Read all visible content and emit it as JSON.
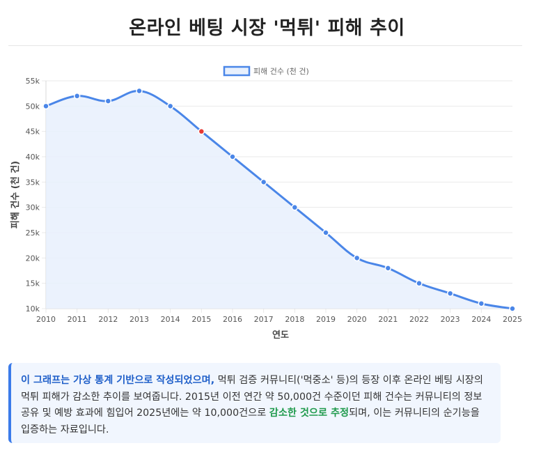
{
  "page": {
    "title": "온라인 베팅 시장 '먹튀' 피해 추이"
  },
  "chart_data": {
    "type": "area",
    "title": "온라인 베팅 시장 '먹튀' 피해 추이",
    "xlabel": "연도",
    "ylabel": "피해 건수 (천 건)",
    "legend": {
      "label": "피해 건수 (천 건)",
      "position": "top-center"
    },
    "categories": [
      "2010",
      "2011",
      "2012",
      "2013",
      "2014",
      "2015",
      "2016",
      "2017",
      "2018",
      "2019",
      "2020",
      "2021",
      "2022",
      "2023",
      "2024",
      "2025"
    ],
    "series": [
      {
        "name": "피해 건수 (천 건)",
        "values": [
          50000,
          52000,
          51000,
          53000,
          50000,
          45000,
          40000,
          35000,
          30000,
          25000,
          20000,
          18000,
          15000,
          13000,
          11000,
          10000
        ]
      }
    ],
    "highlight_index": 5,
    "ylim": [
      10000,
      55000
    ],
    "yticks": [
      10000,
      15000,
      20000,
      25000,
      30000,
      35000,
      40000,
      45000,
      50000,
      55000
    ],
    "ytick_labels": [
      "10k",
      "15k",
      "20k",
      "25k",
      "30k",
      "35k",
      "40k",
      "45k",
      "50k",
      "55k"
    ],
    "colors": {
      "line": "#4a86e8",
      "fill": "#e8f0fd",
      "point": "#4a86e8",
      "highlight": "#e53935",
      "grid": "#e9e9e9",
      "tick": "#555555"
    }
  },
  "note": {
    "lead": "이 그래프는 가상 통계 기반으로 작성되었으며,",
    "body1": " 먹튀 검증 커뮤니티('먹중소' 등)의 등장 이후 온라인 베팅 시장의 먹튀 피해가 감소한 추이를 보여줍니다. 2015년 이전 연간 약 50,000건 수준이던 피해 건수는 커뮤니티의 정보 공유 및 예방 효과에 힘입어 2025년에는 약 10,000건으로 ",
    "emphasis": "감소한 것으로 추정",
    "body2": "되며, 이는 커뮤니티의 순기능을 입증하는 자료입니다."
  }
}
